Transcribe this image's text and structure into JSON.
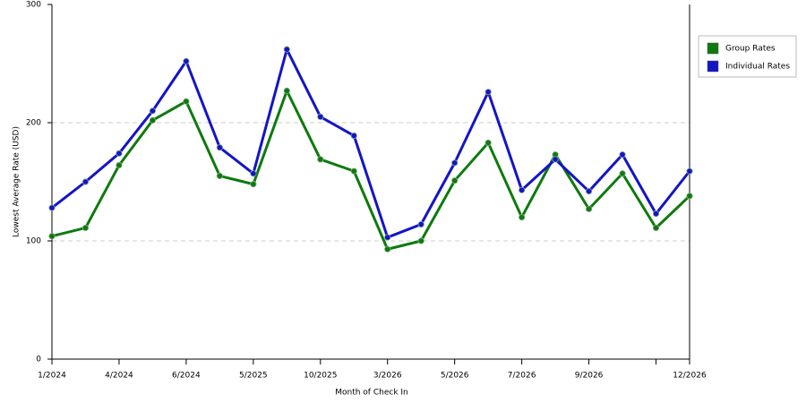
{
  "chart_data": {
    "type": "line",
    "x_label": "Month of Check In",
    "y_label": "Lowest Average Rate (USD)",
    "categories": [
      "1/2024",
      null,
      "4/2024",
      null,
      "6/2024",
      null,
      "5/2025",
      null,
      "10/2025",
      null,
      "3/2026",
      null,
      "5/2026",
      null,
      "7/2026",
      null,
      "9/2026",
      null,
      null,
      "12/2026"
    ],
    "series": [
      {
        "name": "Group Rates",
        "color": "#0d7a0d",
        "values": [
          104,
          111,
          164,
          202,
          218,
          155,
          148,
          227,
          169,
          159,
          93,
          100,
          151,
          183,
          120,
          173,
          127,
          157,
          111,
          138
        ]
      },
      {
        "name": "Individual Rates",
        "color": "#1414c8",
        "values": [
          128,
          150,
          174,
          210,
          252,
          179,
          157,
          262,
          205,
          189,
          103,
          114,
          166,
          226,
          143,
          169,
          142,
          173,
          123,
          159
        ]
      }
    ],
    "ylim": [
      0,
      300
    ],
    "yticks": [
      0,
      100,
      200,
      300
    ],
    "grid": true,
    "legend": "right"
  }
}
